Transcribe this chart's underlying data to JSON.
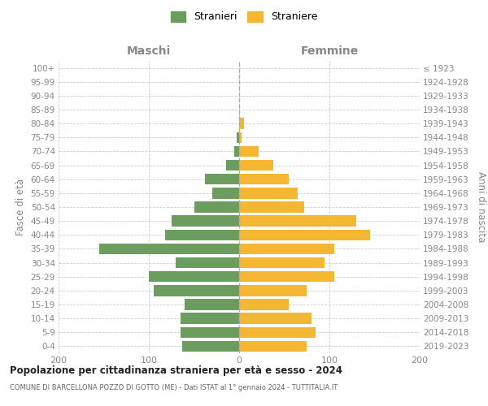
{
  "age_groups": [
    "0-4",
    "5-9",
    "10-14",
    "15-19",
    "20-24",
    "25-29",
    "30-34",
    "35-39",
    "40-44",
    "45-49",
    "50-54",
    "55-59",
    "60-64",
    "65-69",
    "70-74",
    "75-79",
    "80-84",
    "85-89",
    "90-94",
    "95-99",
    "100+"
  ],
  "birth_years": [
    "2019-2023",
    "2014-2018",
    "2009-2013",
    "2004-2008",
    "1999-2003",
    "1994-1998",
    "1989-1993",
    "1984-1988",
    "1979-1983",
    "1974-1978",
    "1969-1973",
    "1964-1968",
    "1959-1963",
    "1954-1958",
    "1949-1953",
    "1944-1948",
    "1939-1943",
    "1934-1938",
    "1929-1933",
    "1924-1928",
    "≤ 1923"
  ],
  "maschi": [
    63,
    65,
    65,
    60,
    95,
    100,
    70,
    155,
    82,
    75,
    50,
    30,
    38,
    14,
    5,
    3,
    0,
    0,
    0,
    0,
    0
  ],
  "femmine": [
    75,
    85,
    80,
    55,
    75,
    105,
    95,
    105,
    145,
    130,
    72,
    65,
    55,
    38,
    22,
    3,
    5,
    0,
    0,
    0,
    0
  ],
  "color_maschi": "#6b9e5e",
  "color_femmine": "#f5b731",
  "xlim": 200,
  "title": "Popolazione per cittadinanza straniera per età e sesso - 2024",
  "subtitle": "COMUNE DI BARCELLONA POZZO DI GOTTO (ME) - Dati ISTAT al 1° gennaio 2024 - TUTTITALIA.IT",
  "ylabel_left": "Fasce di età",
  "ylabel_right": "Anni di nascita",
  "legend_maschi": "Stranieri",
  "legend_femmine": "Straniere",
  "header_left": "Maschi",
  "header_right": "Femmine",
  "bg_color": "#ffffff",
  "grid_color": "#cccccc"
}
